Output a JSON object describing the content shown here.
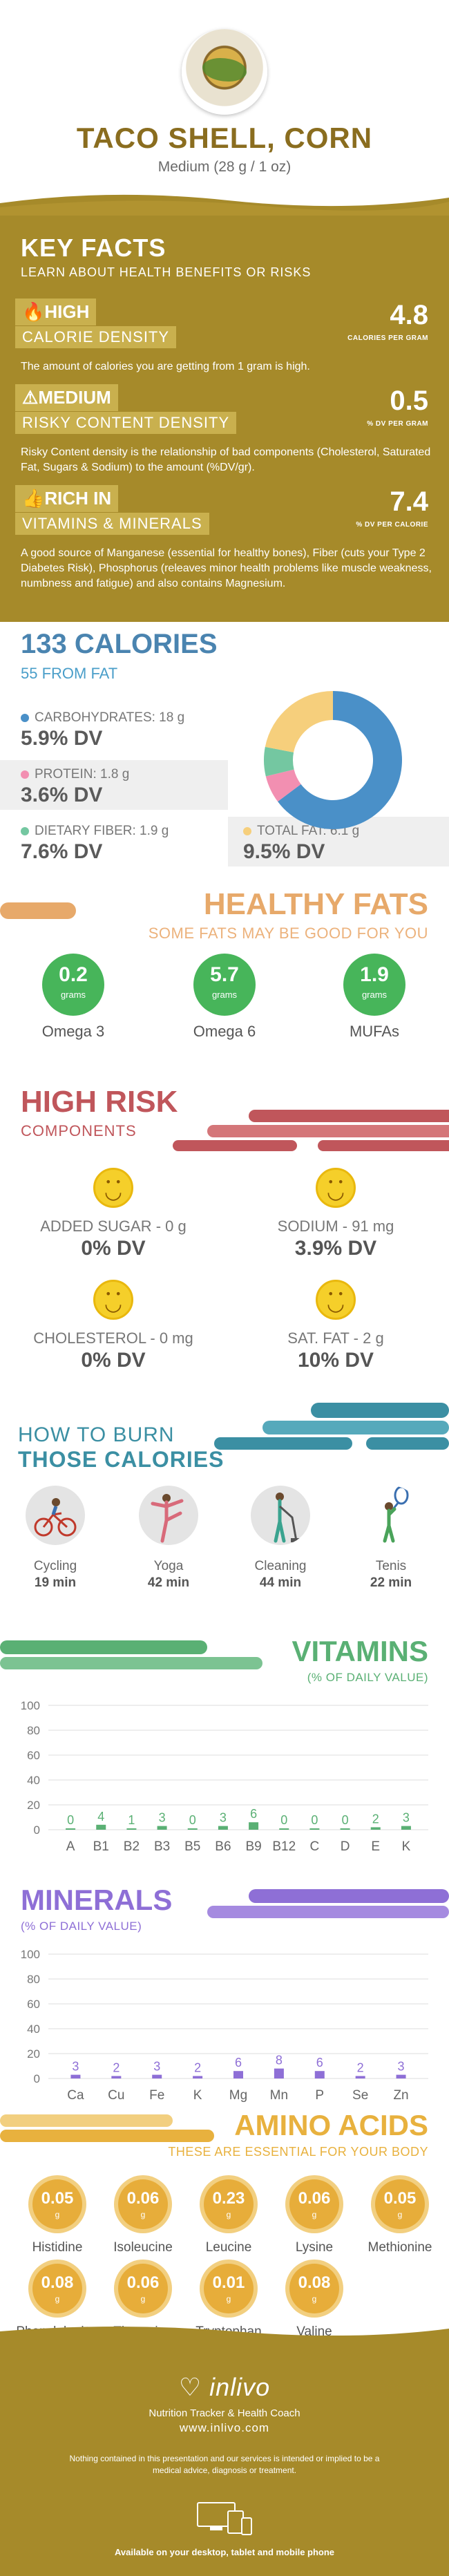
{
  "header": {
    "title": "TACO SHELL, CORN",
    "serving": "Medium (28 g / 1 oz)"
  },
  "key_facts": {
    "title": "KEY FACTS",
    "subtitle": "LEARN ABOUT HEALTH BENEFITS OR RISKS",
    "facts": [
      {
        "level": "HIGH",
        "label": "CALORIE DENSITY",
        "value": "4.8",
        "unit": "CALORIES PER GRAM",
        "description": "The amount of calories you are getting from 1 gram is high."
      },
      {
        "level": "MEDIUM",
        "label": "RISKY CONTENT DENSITY",
        "value": "0.5",
        "unit": "% DV PER GRAM",
        "description": "Risky Content density is the relationship of bad components (Cholesterol, Saturated Fat, Sugars & Sodium) to the amount (%DV/gr)."
      },
      {
        "level": "RICH  IN",
        "label": "VITAMINS & MINERALS",
        "value": "7.4",
        "unit": "% DV PER CALORIE",
        "description": "A good source of Manganese (essential for healthy bones), Fiber (cuts your  Type 2 Diabetes Risk), Phosphorus (releaves minor health problems like muscle weakness, numbness and fatigue) and also contains Magnesium."
      }
    ]
  },
  "calories": {
    "title": "133 CALORIES",
    "from_fat": "55 FROM FAT",
    "macros": [
      {
        "label": "CARBOHYDRATES: 18 g",
        "dv": "5.9% DV",
        "color": "#4a90c8"
      },
      {
        "label": "PROTEIN: 1.8 g",
        "dv": "3.6% DV",
        "color": "#f28fb1"
      },
      {
        "label": "DIETARY FIBER: 1.9 g",
        "dv": "7.6% DV",
        "color": "#74c7a1"
      },
      {
        "label": "TOTAL FAT: 6.1 g",
        "dv": "9.5% DV",
        "color": "#f6cf7c"
      }
    ],
    "donut": [
      {
        "name": "carbohydrates",
        "value": 18,
        "color": "#4a90c8"
      },
      {
        "name": "protein",
        "value": 1.8,
        "color": "#f28fb1"
      },
      {
        "name": "fiber",
        "value": 1.9,
        "color": "#74c7a1"
      },
      {
        "name": "fat",
        "value": 6.1,
        "color": "#f6cf7c"
      }
    ]
  },
  "healthy_fats": {
    "title": "HEALTHY FATS",
    "subtitle": "SOME FATS MAY BE GOOD FOR YOU",
    "items": [
      {
        "value": "0.2",
        "unit": "grams",
        "name": "Omega 3"
      },
      {
        "value": "5.7",
        "unit": "grams",
        "name": "Omega 6"
      },
      {
        "value": "1.9",
        "unit": "grams",
        "name": "MUFAs"
      }
    ]
  },
  "high_risk": {
    "title": "HIGH RISK",
    "subtitle": "COMPONENTS",
    "items": [
      {
        "label": "ADDED SUGAR - 0 g",
        "dv": "0% DV"
      },
      {
        "label": "SODIUM - 91 mg",
        "dv": "3.9% DV"
      },
      {
        "label": "CHOLESTEROL - 0 mg",
        "dv": "0% DV"
      },
      {
        "label": "SAT. FAT - 2 g",
        "dv": "10% DV"
      }
    ]
  },
  "burn": {
    "title_line1": "HOW TO BURN",
    "title_line2": "THOSE CALORIES",
    "activities": [
      {
        "name": "Cycling",
        "minutes": "19 min",
        "icon": "cycling-icon"
      },
      {
        "name": "Yoga",
        "minutes": "42 min",
        "icon": "yoga-icon"
      },
      {
        "name": "Cleaning",
        "minutes": "44 min",
        "icon": "cleaning-icon"
      },
      {
        "name": "Tenis",
        "minutes": "22 min",
        "icon": "tennis-icon"
      }
    ]
  },
  "vitamins": {
    "title": "VITAMINS",
    "subtitle": "(% OF DAILY VALUE)",
    "color": "#5ab074"
  },
  "minerals": {
    "title": "MINERALS",
    "subtitle": "(% OF DAILY VALUE)",
    "color": "#8e6fd6"
  },
  "chart_data": [
    {
      "type": "bar",
      "title": "VITAMINS",
      "subtitle": "(% OF DAILY VALUE)",
      "categories": [
        "A",
        "B1",
        "B2",
        "B3",
        "B5",
        "B6",
        "B9",
        "B12",
        "C",
        "D",
        "E",
        "K"
      ],
      "values": [
        0,
        4,
        1,
        3,
        0,
        3,
        6,
        0,
        0,
        0,
        2,
        3
      ],
      "yticks": [
        0,
        20,
        40,
        60,
        80,
        100
      ],
      "ylim": [
        0,
        100
      ],
      "grid": true
    },
    {
      "type": "bar",
      "title": "MINERALS",
      "subtitle": "(% OF DAILY VALUE)",
      "categories": [
        "Ca",
        "Cu",
        "Fe",
        "K",
        "Mg",
        "Mn",
        "P",
        "Se",
        "Zn"
      ],
      "values": [
        3,
        2,
        3,
        2,
        6,
        8,
        6,
        2,
        3
      ],
      "yticks": [
        0,
        20,
        40,
        60,
        80,
        100
      ],
      "ylim": [
        0,
        100
      ],
      "grid": true
    }
  ],
  "amino_acids": {
    "title": "AMINO ACIDS",
    "subtitle": "THESE ARE ESSENTIAL FOR YOUR BODY",
    "items": [
      {
        "value": "0.05",
        "unit": "g",
        "name": "Histidine"
      },
      {
        "value": "0.06",
        "unit": "g",
        "name": "Isoleucine"
      },
      {
        "value": "0.23",
        "unit": "g",
        "name": "Leucine"
      },
      {
        "value": "0.06",
        "unit": "g",
        "name": "Lysine"
      },
      {
        "value": "0.05",
        "unit": "g",
        "name": "Methionine"
      },
      {
        "value": "0.08",
        "unit": "g",
        "name": "Phenylalanine"
      },
      {
        "value": "0.06",
        "unit": "g",
        "name": "Threonine"
      },
      {
        "value": "0.01",
        "unit": "g",
        "name": "Tryptophan"
      },
      {
        "value": "0.08",
        "unit": "g",
        "name": "Valine"
      }
    ]
  },
  "footer": {
    "brand": "inlivo",
    "tagline": "Nutrition Tracker & Health Coach",
    "website": "www.inlivo.com",
    "disclaimer": "Nothing contained in this presentation and our services is intended or implied to be a medical advice, diagnosis or treatment.",
    "available": "Available on your desktop, tablet and mobile phone"
  }
}
